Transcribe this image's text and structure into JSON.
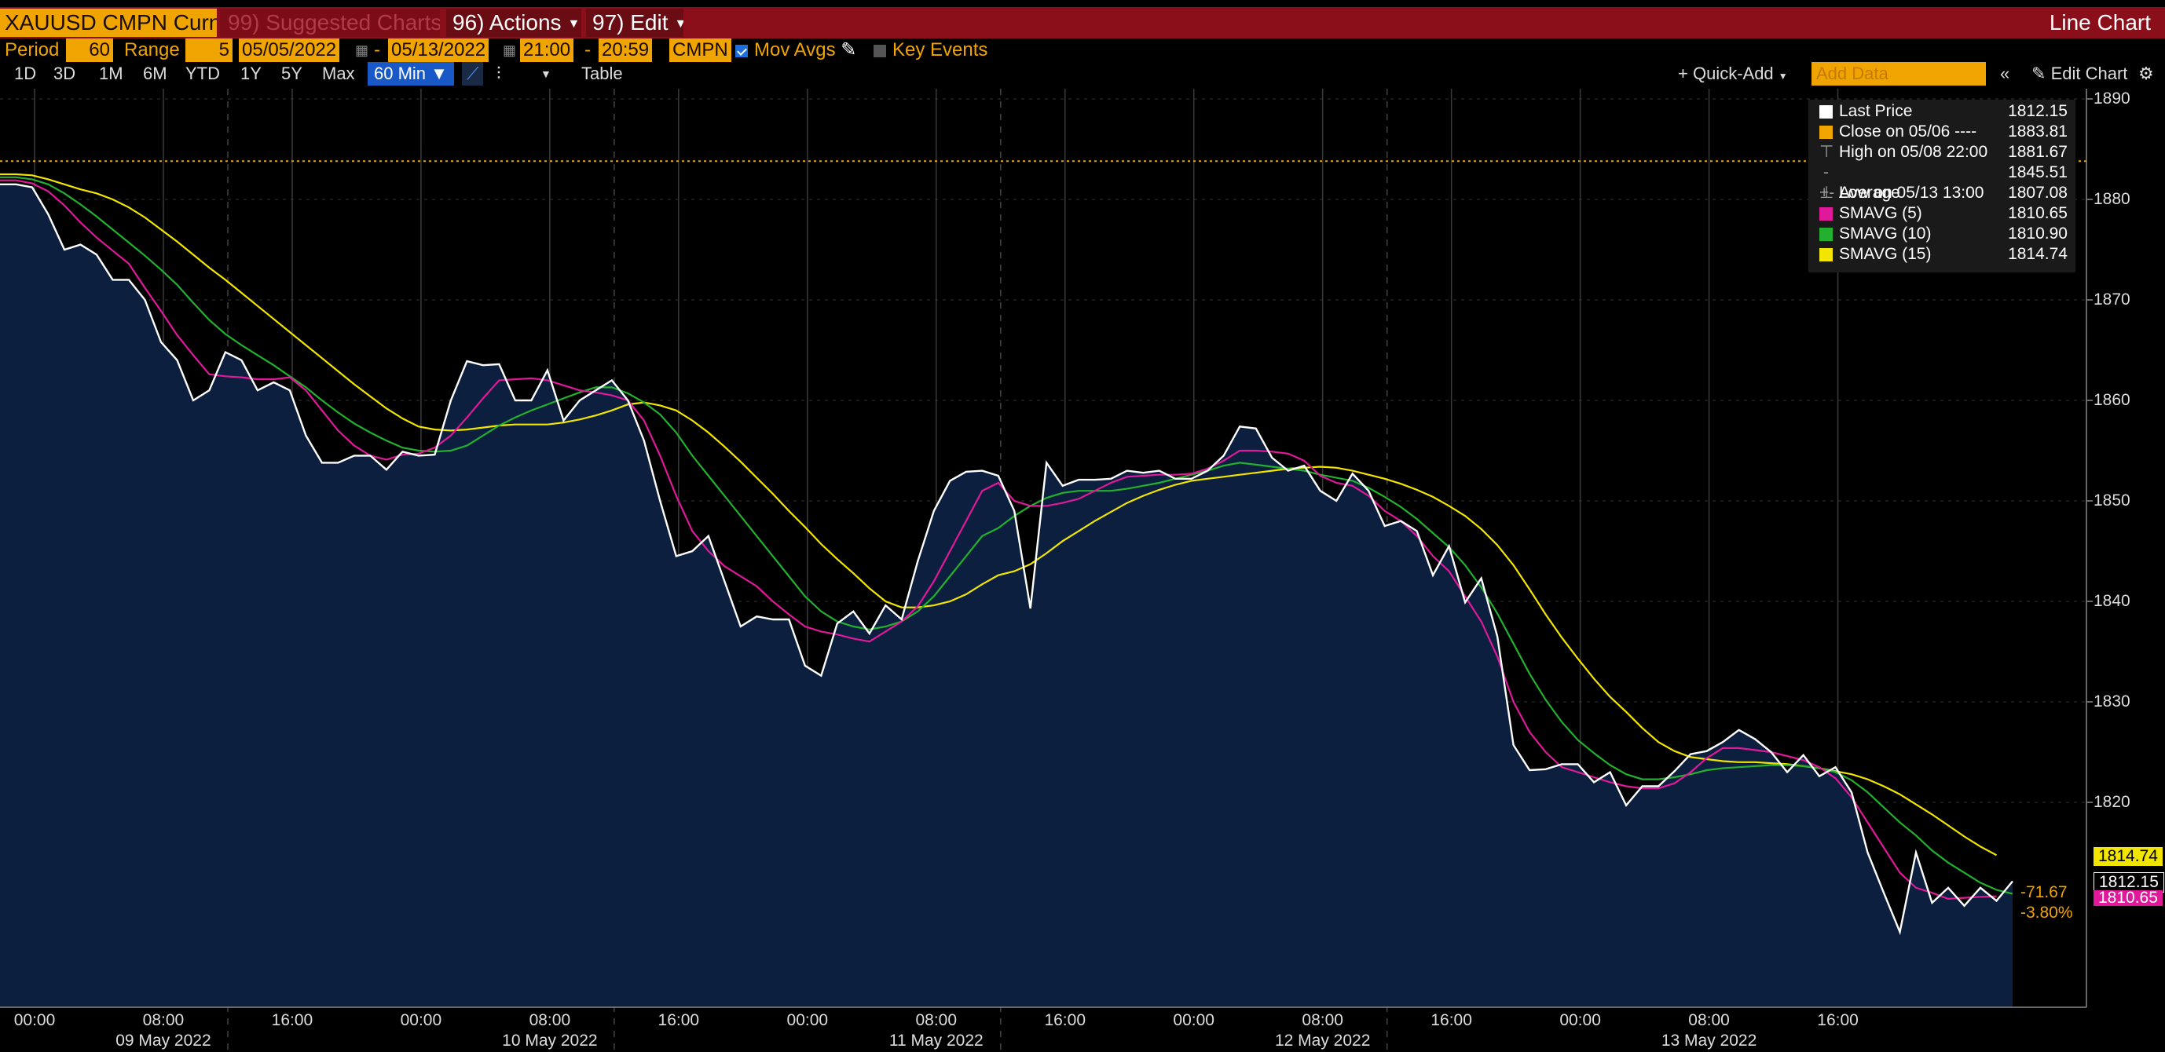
{
  "toolbar": {
    "ticker": "XAUUSD CMPN Curnc",
    "suggested": "99) Suggested Charts",
    "actions": "96) Actions",
    "edit": "97) Edit",
    "title_right": "Line Chart"
  },
  "settings": {
    "period_label": "Period",
    "period_value": "60",
    "range_label": "Range",
    "range_value": "5",
    "start_date": "05/05/2022",
    "dash1": "-",
    "end_date": "05/13/2022",
    "start_time": "21:00",
    "dash2": "-",
    "end_time": "20:59",
    "source": "CMPN",
    "mov_avgs": "Mov Avgs",
    "key_events": "Key Events"
  },
  "ranges": {
    "buttons": [
      "1D",
      "3D",
      "1M",
      "6M",
      "YTD",
      "1Y",
      "5Y",
      "Max"
    ],
    "interval": "60 Min",
    "table": "Table",
    "quick_add": "+ Quick-Add",
    "add_data_placeholder": "Add Data",
    "edit_chart": "Edit Chart"
  },
  "legend": {
    "rows": [
      {
        "label": "Last Price",
        "value": "1812.15",
        "color": "#ffffff"
      },
      {
        "label": "Close on 05/06 ----",
        "value": "1883.81",
        "color": "#f0a400"
      },
      {
        "label": "High on 05/08 22:00",
        "value": "1881.67",
        "color": "#999999"
      },
      {
        "label": "Average",
        "value": "1845.51",
        "color": "#999999"
      },
      {
        "label": "Low on 05/13 13:00",
        "value": "1807.08",
        "color": "#999999"
      },
      {
        "label": "SMAVG (5)",
        "value": "1810.65",
        "color": "#e0199a"
      },
      {
        "label": "SMAVG (10)",
        "value": "1810.90",
        "color": "#22b02e"
      },
      {
        "label": "SMAVG (15)",
        "value": "1814.74",
        "color": "#f2e600"
      }
    ]
  },
  "tags": {
    "sma15": "1814.74",
    "last": "1812.15",
    "sma5": "1810.65",
    "change": "-71.67",
    "change_pct": "-3.80%"
  },
  "chart_data": {
    "type": "line",
    "ylim": [
      1800,
      1890
    ],
    "yticks": [
      1890,
      1880,
      1870,
      1860,
      1850,
      1840,
      1830,
      1820
    ],
    "xtick_labels": [
      "00:00",
      "08:00",
      "16:00",
      "00:00",
      "08:00",
      "16:00",
      "00:00",
      "08:00",
      "16:00",
      "00:00",
      "08:00",
      "16:00",
      "00:00",
      "08:00",
      "16:00"
    ],
    "day_labels": [
      "09 May 2022",
      "10 May 2022",
      "11 May 2022",
      "12 May 2022",
      "13 May 2022"
    ],
    "reference_close": 1883.81,
    "series": [
      {
        "name": "Last Price",
        "color": "#ffffff",
        "values": [
          1881.5,
          1881.5,
          1881.2,
          1878.5,
          1875,
          1875.5,
          1874.5,
          1872,
          1872,
          1870,
          1865.8,
          1864,
          1860,
          1861,
          1864.8,
          1864,
          1861,
          1861.8,
          1861,
          1856.5,
          1853.8,
          1853.8,
          1854.5,
          1854.5,
          1853.1,
          1854.9,
          1854.5,
          1854.6,
          1860,
          1863.9,
          1863.5,
          1863.6,
          1860,
          1860,
          1863,
          1858,
          1860,
          1861,
          1862,
          1860,
          1856,
          1850,
          1844.5,
          1845,
          1846.5,
          1842,
          1837.5,
          1838.5,
          1838.2,
          1838.2,
          1833.6,
          1832.6,
          1837.8,
          1839,
          1836.8,
          1839.6,
          1838.2,
          1844,
          1849,
          1852,
          1852.9,
          1853,
          1852.5,
          1849,
          1839.3,
          1853.8,
          1851.5,
          1852.1,
          1852.1,
          1852.2,
          1853,
          1852.8,
          1853,
          1852.2,
          1852.2,
          1853,
          1854.5,
          1857.4,
          1857.2,
          1854.3,
          1853,
          1853.5,
          1851,
          1850,
          1852.7,
          1851,
          1847.5,
          1848,
          1847,
          1842.6,
          1845.5,
          1839.9,
          1842.3,
          1836.5,
          1825.7,
          1823.2,
          1823.3,
          1823.8,
          1823.8,
          1822,
          1823,
          1819.7,
          1821.6,
          1821.6,
          1823.1,
          1824.8,
          1825.1,
          1826,
          1827.2,
          1826.3,
          1825,
          1823,
          1824.7,
          1822.6,
          1823.5,
          1821,
          1815,
          1811,
          1807.1,
          1815,
          1810,
          1811.5,
          1809.7,
          1811.5,
          1810.2,
          1812.15
        ]
      },
      {
        "name": "SMAVG (5)",
        "color": "#e0199a",
        "values": [
          1881.9,
          1881.9,
          1881.6,
          1880.8,
          1879.4,
          1877.7,
          1876.2,
          1874.9,
          1873.6,
          1871.2,
          1868.9,
          1866.5,
          1864.5,
          1862.6,
          1862.4,
          1862.3,
          1862.1,
          1862.1,
          1862.3,
          1861,
          1859,
          1857,
          1855.5,
          1854.5,
          1854.1,
          1854.6,
          1854.7,
          1855.3,
          1856.5,
          1858.3,
          1860.2,
          1862,
          1862.1,
          1862.2,
          1862,
          1861.5,
          1861,
          1860.8,
          1860.5,
          1860,
          1858,
          1854.5,
          1850.5,
          1847,
          1845,
          1843.5,
          1842.5,
          1841.5,
          1840,
          1838.7,
          1837.5,
          1837,
          1836.7,
          1836.3,
          1836,
          1837,
          1838,
          1839.5,
          1842,
          1845,
          1848,
          1851,
          1851.8,
          1850,
          1849.5,
          1849.5,
          1849.8,
          1850.2,
          1851,
          1851.8,
          1852.4,
          1852.5,
          1852.6,
          1852.6,
          1852.7,
          1853.2,
          1854,
          1855,
          1855,
          1854.9,
          1854.7,
          1854,
          1852.5,
          1851.8,
          1851.5,
          1850.5,
          1849,
          1848,
          1846.5,
          1844.5,
          1843,
          1840.5,
          1838,
          1834.5,
          1830,
          1827,
          1825,
          1823.5,
          1823,
          1822.5,
          1822,
          1821.6,
          1821.4,
          1821.4,
          1821.9,
          1823,
          1824.4,
          1825.4,
          1825.4,
          1825.2,
          1825,
          1824.6,
          1824.2,
          1823.5,
          1822.4,
          1820.5,
          1818,
          1815.5,
          1813,
          1811.5,
          1811,
          1810.4,
          1810.5,
          1810.6,
          1810.65
        ]
      },
      {
        "name": "SMAVG (10)",
        "color": "#22b02e",
        "values": [
          1882.2,
          1882.2,
          1882,
          1881.5,
          1880.6,
          1879.5,
          1878.3,
          1877,
          1875.7,
          1874.4,
          1873,
          1871.5,
          1869.7,
          1868,
          1866.6,
          1865.5,
          1864.5,
          1863.5,
          1862.4,
          1861.3,
          1860,
          1858.8,
          1857.7,
          1856.8,
          1856,
          1855.3,
          1855,
          1854.9,
          1855,
          1855.5,
          1856.5,
          1857.5,
          1858.3,
          1859,
          1859.6,
          1860.2,
          1860.8,
          1861.3,
          1861.3,
          1860.7,
          1859.8,
          1858.6,
          1856.8,
          1854.5,
          1852.5,
          1850.5,
          1848.5,
          1846.5,
          1844.5,
          1842.5,
          1840.5,
          1839,
          1838,
          1837.5,
          1837.2,
          1837.5,
          1838,
          1839,
          1840.5,
          1842.5,
          1844.5,
          1846.5,
          1847.3,
          1848.5,
          1849.5,
          1850.3,
          1850.8,
          1851,
          1851,
          1851,
          1851.2,
          1851.5,
          1851.8,
          1852.2,
          1852.6,
          1853,
          1853.5,
          1853.8,
          1853.6,
          1853.4,
          1853.2,
          1853,
          1852.6,
          1852.3,
          1852,
          1851.3,
          1850.4,
          1849.4,
          1848.2,
          1846.8,
          1845.4,
          1843.6,
          1841.4,
          1838.8,
          1835.8,
          1832.8,
          1830.2,
          1828,
          1826.2,
          1824.9,
          1823.7,
          1822.8,
          1822.3,
          1822.3,
          1822.5,
          1822.8,
          1823.2,
          1823.4,
          1823.5,
          1823.6,
          1823.7,
          1823.7,
          1823.6,
          1823.4,
          1823,
          1822.2,
          1821,
          1819.5,
          1818,
          1816.7,
          1815.2,
          1814,
          1813,
          1812,
          1811.3,
          1810.9
        ]
      },
      {
        "name": "SMAVG (15)",
        "color": "#f2e600",
        "values": [
          1882.5,
          1882.5,
          1882.4,
          1882,
          1881.5,
          1881,
          1880.6,
          1880,
          1879.2,
          1878.2,
          1877,
          1875.8,
          1874.5,
          1873.2,
          1872,
          1870.7,
          1869.4,
          1868.1,
          1866.8,
          1865.5,
          1864.2,
          1862.9,
          1861.6,
          1860.4,
          1859.2,
          1858.2,
          1857.4,
          1857.1,
          1857,
          1857.1,
          1857.3,
          1857.5,
          1857.6,
          1857.6,
          1857.6,
          1857.8,
          1858.1,
          1858.5,
          1859,
          1859.6,
          1859.8,
          1859.5,
          1859,
          1858,
          1856.8,
          1855.4,
          1853.9,
          1852.3,
          1850.7,
          1849,
          1847.4,
          1845.7,
          1844.2,
          1842.8,
          1841.3,
          1840,
          1839.4,
          1839.4,
          1839.6,
          1840,
          1840.7,
          1841.7,
          1842.6,
          1843,
          1843.7,
          1844.8,
          1846,
          1847,
          1848,
          1848.9,
          1849.8,
          1850.5,
          1851.1,
          1851.6,
          1852,
          1852.2,
          1852.4,
          1852.6,
          1852.8,
          1853,
          1853.2,
          1853.3,
          1853.4,
          1853.3,
          1853,
          1852.6,
          1852.2,
          1851.7,
          1851.1,
          1850.4,
          1849.5,
          1848.5,
          1847.2,
          1845.6,
          1843.6,
          1841.2,
          1838.7,
          1836.4,
          1834.3,
          1832.3,
          1830.5,
          1829,
          1827.4,
          1826,
          1825.1,
          1824.5,
          1824.3,
          1824.1,
          1824,
          1824,
          1823.9,
          1823.8,
          1823.6,
          1823.4,
          1823.1,
          1822.8,
          1822.3,
          1821.6,
          1820.8,
          1819.8,
          1818.8,
          1817.7,
          1816.6,
          1815.6,
          1814.74
        ]
      }
    ]
  }
}
